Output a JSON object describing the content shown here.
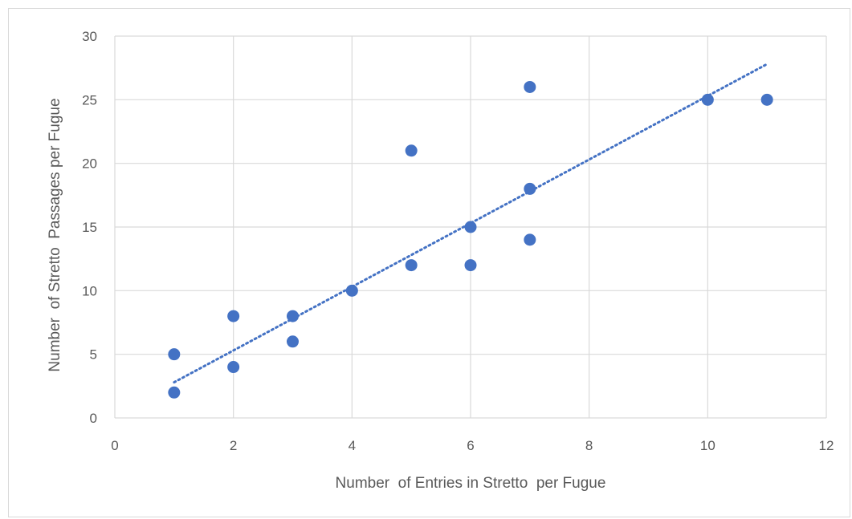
{
  "chart_data": {
    "type": "scatter",
    "title": "",
    "xlabel": "Number  of Entries in Stretto  per Fugue",
    "ylabel": "Number  of Stretto  Passages per Fugue",
    "xlim": [
      0,
      12
    ],
    "ylim": [
      0,
      30
    ],
    "x_ticks": [
      0,
      2,
      4,
      6,
      8,
      10,
      12
    ],
    "y_ticks": [
      0,
      5,
      10,
      15,
      20,
      25,
      30
    ],
    "grid": true,
    "legend": "none",
    "colors": {
      "points": "#4472c4",
      "trendline": "#4472c4",
      "grid": "#d9d9d9",
      "text": "#595959"
    },
    "series": [
      {
        "points": [
          {
            "x": 1,
            "y": 5
          },
          {
            "x": 1,
            "y": 2
          },
          {
            "x": 2,
            "y": 8
          },
          {
            "x": 2,
            "y": 4
          },
          {
            "x": 3,
            "y": 8
          },
          {
            "x": 3,
            "y": 6
          },
          {
            "x": 4,
            "y": 10
          },
          {
            "x": 5,
            "y": 21
          },
          {
            "x": 5,
            "y": 12
          },
          {
            "x": 6,
            "y": 15
          },
          {
            "x": 6,
            "y": 12
          },
          {
            "x": 7,
            "y": 26
          },
          {
            "x": 7,
            "y": 18
          },
          {
            "x": 7,
            "y": 14
          },
          {
            "x": 10,
            "y": 25
          },
          {
            "x": 11,
            "y": 25
          }
        ]
      }
    ],
    "trendline": {
      "type": "linear",
      "style": "dotted",
      "x": [
        1,
        11
      ],
      "y": [
        2.8,
        27.8
      ]
    }
  }
}
